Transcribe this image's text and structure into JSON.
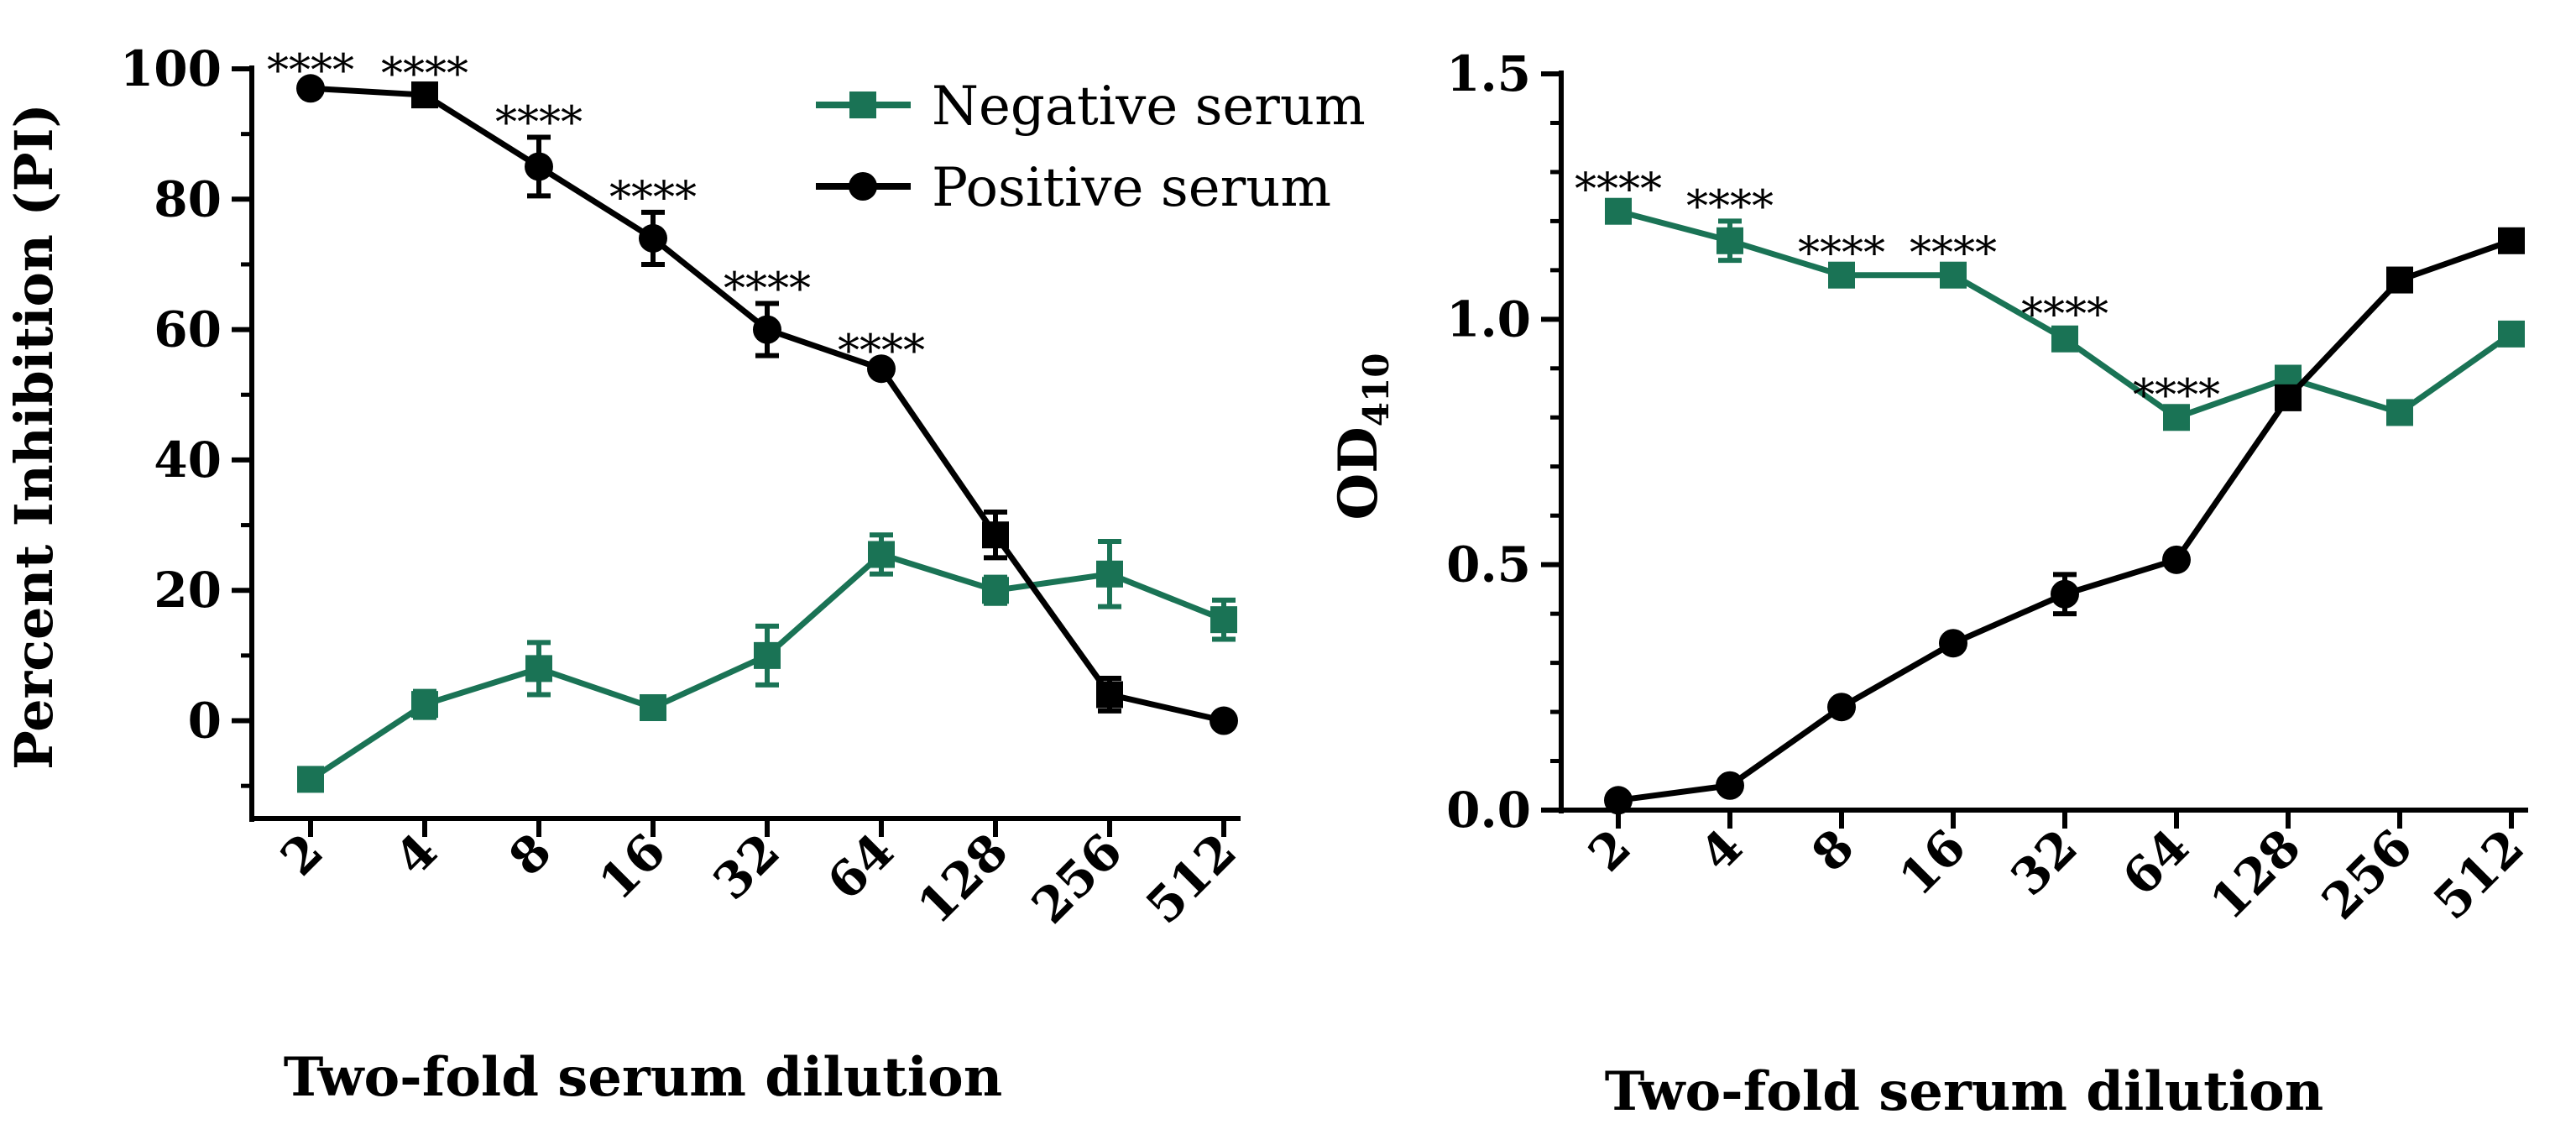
{
  "chart_data": [
    {
      "type": "line",
      "categories": [
        "2",
        "4",
        "8",
        "16",
        "32",
        "64",
        "128",
        "256",
        "512"
      ],
      "xlabel": "Two-fold serum dilution",
      "ylabel": "Percent Inhibition (PI)",
      "ylim": [
        -15,
        100
      ],
      "yticks": [
        0,
        20,
        40,
        60,
        80,
        100
      ],
      "yticks_text": [
        "0",
        "20",
        "40",
        "60",
        "80",
        "100"
      ],
      "series": [
        {
          "name": "Negative serum",
          "color": "#1a7355",
          "marker": "square",
          "values": [
            -9,
            2.5,
            8,
            2,
            10,
            25.5,
            20,
            22.5,
            15.5
          ],
          "errors": [
            1.5,
            2,
            4,
            1,
            4.5,
            3,
            2,
            5,
            3
          ]
        },
        {
          "name": "Positive serum",
          "color": "#000000",
          "marker": "mixed",
          "values": [
            97,
            96,
            85,
            74,
            60,
            54,
            28.5,
            4,
            0
          ],
          "errors": [
            0.5,
            1,
            4.5,
            4,
            4,
            0.5,
            3.5,
            2.5,
            0.5
          ]
        }
      ],
      "annotations": [
        "****",
        "****",
        "****",
        "****",
        "****",
        "****"
      ],
      "legend": {
        "position": "top-right",
        "entries": [
          "Negative serum",
          "Positive serum"
        ]
      }
    },
    {
      "type": "line",
      "categories": [
        "2",
        "4",
        "8",
        "16",
        "32",
        "64",
        "128",
        "256",
        "512"
      ],
      "xlabel": "Two-fold serum dilution",
      "ylabel_main": "OD",
      "ylabel_sub": "410",
      "ylim": [
        0,
        1.5
      ],
      "yticks": [
        0,
        0.5,
        1,
        1.5
      ],
      "yticks_text": [
        "0.0",
        "0.5",
        "1.0",
        "1.5"
      ],
      "series": [
        {
          "name": "Negative serum",
          "color": "#1a7355",
          "marker": "square",
          "values": [
            1.22,
            1.16,
            1.09,
            1.09,
            0.96,
            0.8,
            0.88,
            0.81,
            0.97
          ],
          "errors": [
            0.015,
            0.04,
            0.015,
            0.015,
            0.02,
            0.015,
            0.015,
            0.015,
            0.015
          ]
        },
        {
          "name": "Positive serum",
          "color": "#000000",
          "marker": "mixed",
          "values": [
            0.02,
            0.05,
            0.21,
            0.34,
            0.44,
            0.51,
            0.84,
            1.08,
            1.16
          ],
          "errors": [
            0.005,
            0.005,
            0.01,
            0.01,
            0.04,
            0.01,
            0.015,
            0.02,
            0.02
          ]
        }
      ],
      "annotations": [
        "****",
        "****",
        "****",
        "****",
        "****",
        "****"
      ]
    }
  ]
}
